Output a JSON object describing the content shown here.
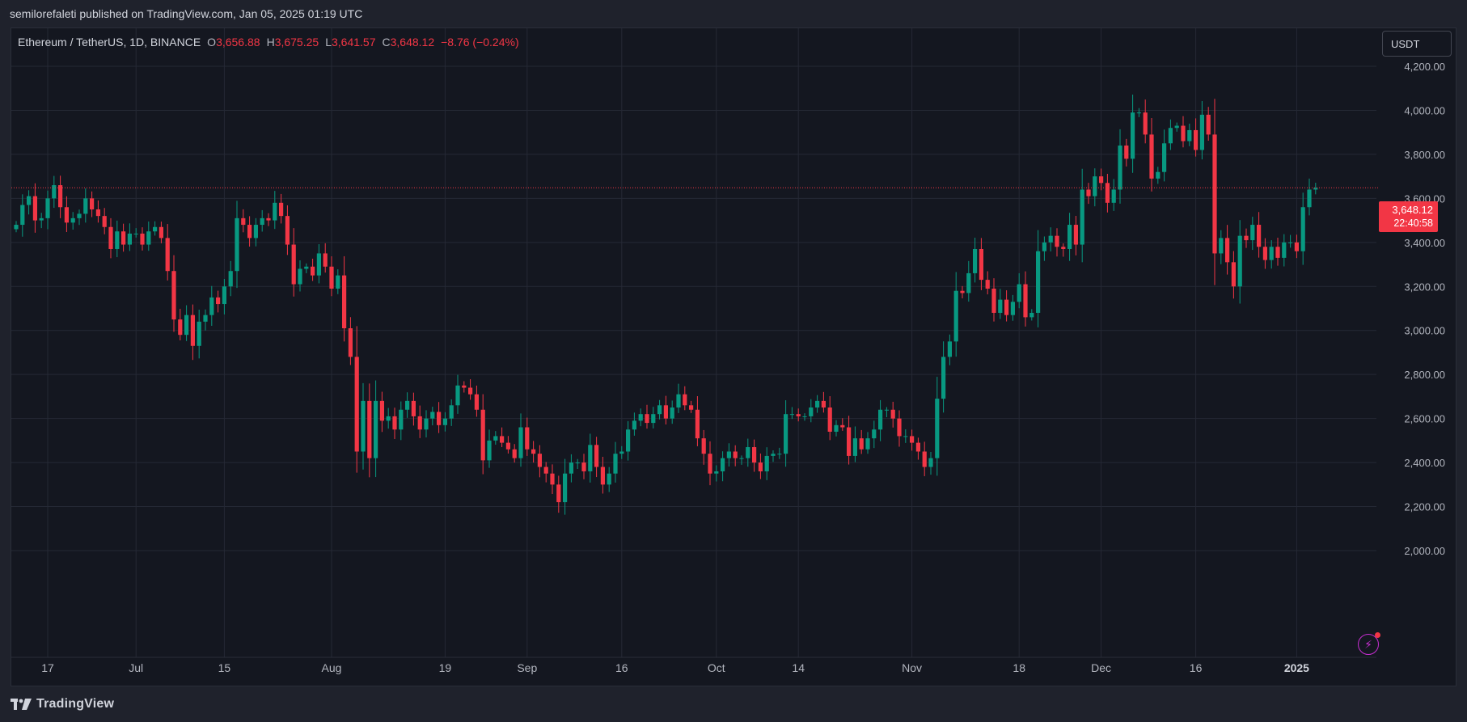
{
  "header": {
    "publisher_line": "semilorefaleti published on TradingView.com, Jan 05, 2025 01:19 UTC"
  },
  "legend": {
    "symbol": "Ethereum / TetherUS, 1D, BINANCE",
    "o_label": "O",
    "o_value": "3,656.88",
    "h_label": "H",
    "h_value": "3,675.25",
    "l_label": "L",
    "l_value": "3,641.57",
    "c_label": "C",
    "c_value": "3,648.12",
    "change": "−8.76 (−0.24%)"
  },
  "currency_button": {
    "label": "USDT"
  },
  "price_badge": {
    "price": "3,648.12",
    "countdown": "22:40:58"
  },
  "footer": {
    "brand": "TradingView"
  },
  "colors": {
    "up": "#089981",
    "down": "#f23645",
    "grid": "#252935",
    "axis_text": "#b2b5be",
    "background": "#141720"
  },
  "icons": {
    "lightning": "lightning-icon",
    "logo": "tradingview-logo-icon"
  },
  "chart_data": {
    "type": "candlestick",
    "symbol": "ETHUSDT",
    "interval": "1D",
    "ylim": [
      1900,
      4250
    ],
    "y_ticks": [
      2000,
      2200,
      2400,
      2600,
      2800,
      3000,
      3200,
      3400,
      3600,
      3800,
      4000,
      4200
    ],
    "y_tick_labels": [
      "2,000.00",
      "2,200.00",
      "2,400.00",
      "2,600.00",
      "2,800.00",
      "3,000.00",
      "3,200.00",
      "3,400.00",
      "3,600.00",
      "3,800.00",
      "4,000.00",
      "4,200.00"
    ],
    "x_ticks": [
      {
        "label": "17",
        "index": 5
      },
      {
        "label": "Jul",
        "index": 19
      },
      {
        "label": "15",
        "index": 33
      },
      {
        "label": "Aug",
        "index": 50
      },
      {
        "label": "19",
        "index": 68
      },
      {
        "label": "Sep",
        "index": 81
      },
      {
        "label": "16",
        "index": 96
      },
      {
        "label": "Oct",
        "index": 111
      },
      {
        "label": "14",
        "index": 124
      },
      {
        "label": "Nov",
        "index": 142
      },
      {
        "label": "18",
        "index": 159
      },
      {
        "label": "Dec",
        "index": 172
      },
      {
        "label": "16",
        "index": 187
      },
      {
        "label": "2025",
        "index": 203
      }
    ],
    "grid": true,
    "last_price": 3648.12,
    "closes": [
      3480,
      3570,
      3610,
      3500,
      3510,
      3600,
      3660,
      3560,
      3490,
      3510,
      3530,
      3600,
      3550,
      3520,
      3470,
      3370,
      3450,
      3390,
      3440,
      3440,
      3390,
      3450,
      3470,
      3420,
      3270,
      3050,
      2980,
      3070,
      2930,
      3040,
      3070,
      3150,
      3120,
      3200,
      3270,
      3510,
      3480,
      3420,
      3480,
      3510,
      3500,
      3580,
      3520,
      3390,
      3210,
      3280,
      3290,
      3250,
      3350,
      3290,
      3190,
      3250,
      3010,
      2880,
      2450,
      2680,
      2420,
      2680,
      2590,
      2610,
      2550,
      2640,
      2680,
      2610,
      2550,
      2600,
      2630,
      2570,
      2600,
      2660,
      2750,
      2740,
      2710,
      2640,
      2410,
      2500,
      2520,
      2490,
      2460,
      2420,
      2560,
      2460,
      2440,
      2380,
      2350,
      2300,
      2220,
      2350,
      2400,
      2400,
      2360,
      2480,
      2380,
      2300,
      2350,
      2440,
      2450,
      2550,
      2590,
      2620,
      2580,
      2620,
      2660,
      2600,
      2650,
      2710,
      2660,
      2640,
      2510,
      2440,
      2350,
      2360,
      2420,
      2450,
      2420,
      2420,
      2470,
      2400,
      2360,
      2430,
      2440,
      2440,
      2620,
      2620,
      2610,
      2610,
      2650,
      2680,
      2650,
      2540,
      2570,
      2560,
      2430,
      2510,
      2460,
      2510,
      2550,
      2640,
      2640,
      2600,
      2520,
      2520,
      2490,
      2450,
      2380,
      2420,
      2690,
      2880,
      2950,
      3180,
      3170,
      3260,
      3370,
      3230,
      3190,
      3080,
      3140,
      3070,
      3130,
      3210,
      3060,
      3080,
      3360,
      3400,
      3430,
      3380,
      3370,
      3480,
      3390,
      3640,
      3610,
      3700,
      3670,
      3580,
      3640,
      3840,
      3780,
      3990,
      3990,
      3890,
      3690,
      3720,
      3850,
      3920,
      3930,
      3860,
      3910,
      3820,
      3980,
      3890,
      3350,
      3420,
      3310,
      3200,
      3430,
      3410,
      3480,
      3380,
      3320,
      3380,
      3330,
      3400,
      3400,
      3360,
      3560,
      3640,
      3648
    ]
  }
}
